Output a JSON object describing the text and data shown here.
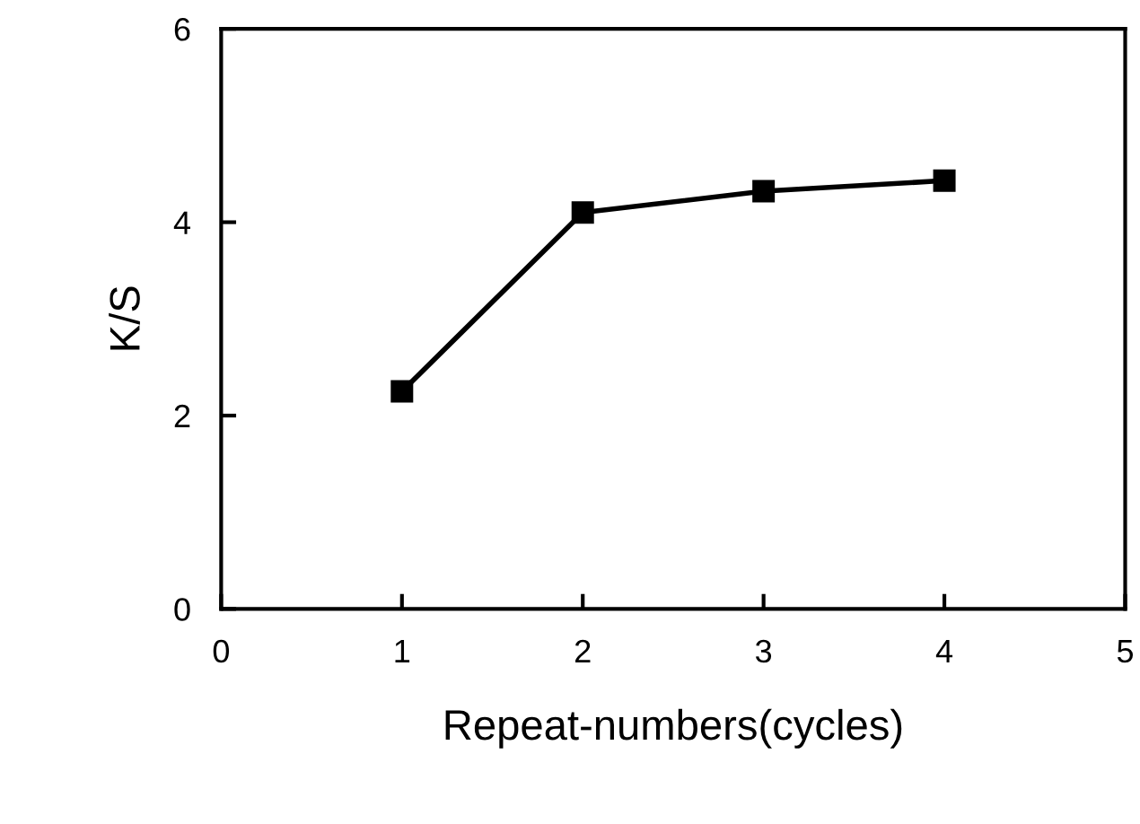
{
  "chart_data": {
    "type": "line",
    "xlabel": "Repeat-numbers(cycles)",
    "ylabel": "K/S",
    "x": [
      1,
      2,
      3,
      4
    ],
    "series": [
      {
        "color": "#000000",
        "values": [
          2.25,
          4.1,
          4.32,
          4.43
        ]
      }
    ],
    "xlim": [
      0,
      5
    ],
    "xticks": [
      0,
      1,
      2,
      3,
      4,
      5
    ],
    "ylim": [
      0,
      6
    ],
    "yticks": [
      0,
      2,
      4,
      6
    ],
    "grid": false,
    "legend": false,
    "marker": "square",
    "line_style": "solid"
  }
}
